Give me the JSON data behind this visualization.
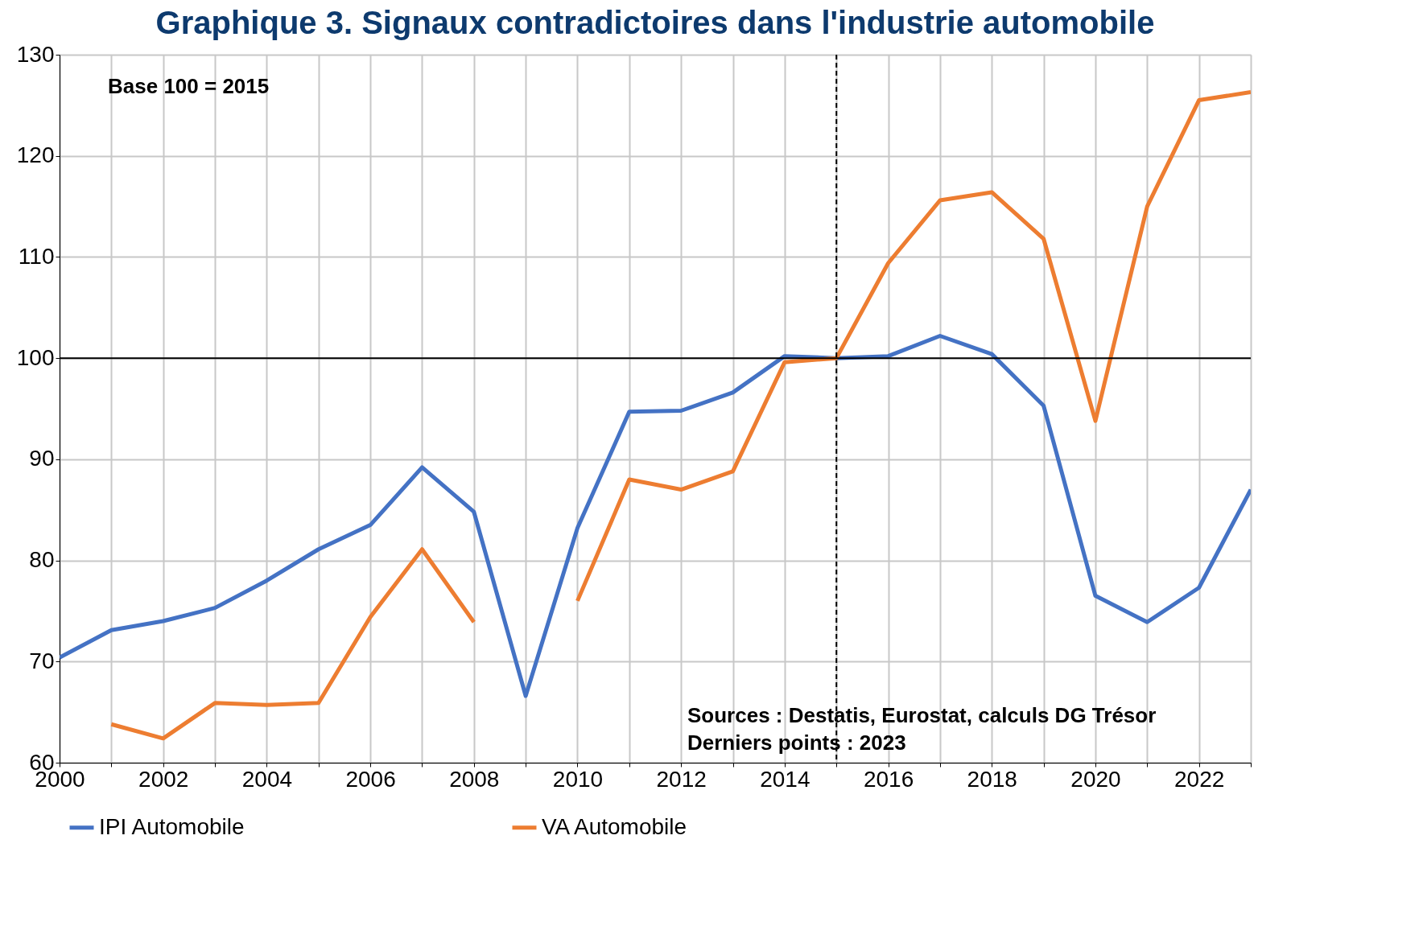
{
  "chart_data": {
    "type": "line",
    "title": "Graphique 3. Signaux contradictoires dans l'industrie automobile",
    "x": [
      2000,
      2001,
      2002,
      2003,
      2004,
      2005,
      2006,
      2007,
      2008,
      2009,
      2010,
      2011,
      2012,
      2013,
      2014,
      2015,
      2016,
      2017,
      2018,
      2019,
      2020,
      2021,
      2022,
      2023
    ],
    "series": [
      {
        "name": "IPI Automobile",
        "color": "#4472c4",
        "values": [
          70.4,
          73.1,
          74.0,
          75.3,
          78.0,
          81.1,
          83.5,
          89.2,
          84.8,
          66.6,
          83.2,
          94.7,
          94.8,
          96.6,
          100.2,
          100.0,
          100.2,
          102.2,
          100.4,
          95.3,
          76.5,
          73.9,
          77.3,
          87.0
        ]
      },
      {
        "name": "VA Automobile",
        "color": "#ed7d31",
        "values": [
          null,
          63.8,
          62.4,
          65.9,
          65.7,
          65.9,
          74.4,
          81.1,
          73.9,
          null,
          76.0,
          88.0,
          87.0,
          88.8,
          99.6,
          100.0,
          109.4,
          115.6,
          116.4,
          111.8,
          93.8,
          115.0,
          125.5,
          126.3
        ]
      }
    ],
    "xlim": [
      2000,
      2023
    ],
    "xticks": [
      2000,
      {
        "value": 2001,
        "label": null
      },
      2002,
      {
        "value": 2003,
        "label": null
      },
      2004,
      {
        "value": 2005,
        "label": null
      },
      2006,
      {
        "value": 2007,
        "label": null
      },
      2008,
      {
        "value": 2009,
        "label": null
      },
      2010,
      {
        "value": 2011,
        "label": null
      },
      2012,
      {
        "value": 2013,
        "label": null
      },
      2014,
      {
        "value": 2015,
        "label": null
      },
      2016,
      {
        "value": 2017,
        "label": null
      },
      2018,
      {
        "value": 2019,
        "label": null
      },
      2020,
      {
        "value": 2021,
        "label": null
      },
      2022,
      {
        "value": 2023,
        "label": null
      }
    ],
    "ylim": [
      60,
      130
    ],
    "yticks": [
      60,
      70,
      80,
      90,
      100,
      110,
      120,
      130
    ],
    "ref_lines": [
      {
        "axis": "y",
        "value": 100,
        "color": "#000000",
        "line_style": "solid"
      },
      {
        "axis": "x",
        "value": 2015,
        "color": "#000000",
        "line_style": "dashed"
      }
    ],
    "annotations": [
      "Base 100 = 2015",
      "Sources : Destatis, Eurostat, calculs DG Trésor",
      "Derniers points : 2023"
    ],
    "grid": true,
    "legend": "bottom",
    "line_style": "solid",
    "marker": "none"
  }
}
